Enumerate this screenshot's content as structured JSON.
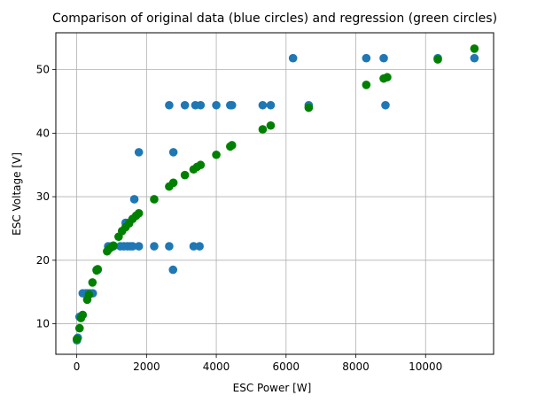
{
  "chart_data": {
    "type": "scatter",
    "title": "Comparison of original data (blue circles) and regression (green circles)",
    "xlabel": "ESC Power [W]",
    "ylabel": "ESC Voltage [V]",
    "xlim": [
      -600,
      11950
    ],
    "ylim": [
      5.2,
      55.8
    ],
    "xticks": [
      0,
      2000,
      4000,
      6000,
      8000,
      10000
    ],
    "yticks": [
      10,
      20,
      30,
      40,
      50
    ],
    "grid": true,
    "legend": false,
    "series": [
      {
        "color": "#1f77b4",
        "points": [
          [
            5,
            7.4
          ],
          [
            30,
            7.8
          ],
          [
            80,
            11.1
          ],
          [
            170,
            14.8
          ],
          [
            260,
            14.8
          ],
          [
            320,
            14.8
          ],
          [
            380,
            14.8
          ],
          [
            460,
            14.8
          ],
          [
            570,
            18.5
          ],
          [
            600,
            18.5
          ],
          [
            900,
            22.2
          ],
          [
            1000,
            22.2
          ],
          [
            1050,
            22.2
          ],
          [
            1250,
            22.2
          ],
          [
            1350,
            22.2
          ],
          [
            1450,
            22.2
          ],
          [
            1530,
            22.2
          ],
          [
            1600,
            22.2
          ],
          [
            1780,
            22.2
          ],
          [
            2220,
            22.2
          ],
          [
            2650,
            22.2
          ],
          [
            3350,
            22.2
          ],
          [
            3520,
            22.2
          ],
          [
            2760,
            18.5
          ],
          [
            1400,
            25.9
          ],
          [
            1480,
            25.9
          ],
          [
            1650,
            29.6
          ],
          [
            1780,
            37.0
          ],
          [
            2770,
            37.0
          ],
          [
            2650,
            44.4
          ],
          [
            3100,
            44.4
          ],
          [
            3400,
            44.4
          ],
          [
            3550,
            44.4
          ],
          [
            4000,
            44.4
          ],
          [
            4400,
            44.4
          ],
          [
            4450,
            44.4
          ],
          [
            5330,
            44.4
          ],
          [
            5560,
            44.4
          ],
          [
            6650,
            44.4
          ],
          [
            6200,
            51.8
          ],
          [
            8300,
            51.8
          ],
          [
            8800,
            51.8
          ],
          [
            8850,
            44.4
          ],
          [
            10350,
            51.8
          ],
          [
            11400,
            51.8
          ]
        ]
      },
      {
        "color": "#008000",
        "points": [
          [
            5,
            7.6
          ],
          [
            80,
            9.3
          ],
          [
            120,
            10.9
          ],
          [
            170,
            11.4
          ],
          [
            300,
            13.8
          ],
          [
            350,
            14.6
          ],
          [
            450,
            16.5
          ],
          [
            570,
            18.4
          ],
          [
            600,
            18.6
          ],
          [
            870,
            21.4
          ],
          [
            930,
            21.8
          ],
          [
            1000,
            22.1
          ],
          [
            1050,
            22.3
          ],
          [
            1200,
            23.7
          ],
          [
            1300,
            24.6
          ],
          [
            1400,
            25.2
          ],
          [
            1500,
            25.8
          ],
          [
            1600,
            26.5
          ],
          [
            1700,
            27.0
          ],
          [
            1780,
            27.4
          ],
          [
            2220,
            29.6
          ],
          [
            2650,
            31.6
          ],
          [
            2770,
            32.2
          ],
          [
            3100,
            33.4
          ],
          [
            3350,
            34.3
          ],
          [
            3450,
            34.7
          ],
          [
            3550,
            35.0
          ],
          [
            4000,
            36.6
          ],
          [
            4400,
            37.9
          ],
          [
            4450,
            38.1
          ],
          [
            5330,
            40.6
          ],
          [
            5560,
            41.2
          ],
          [
            6650,
            44.0
          ],
          [
            8300,
            47.6
          ],
          [
            8800,
            48.6
          ],
          [
            8900,
            48.8
          ],
          [
            10350,
            51.6
          ],
          [
            11400,
            53.3
          ]
        ]
      }
    ]
  }
}
